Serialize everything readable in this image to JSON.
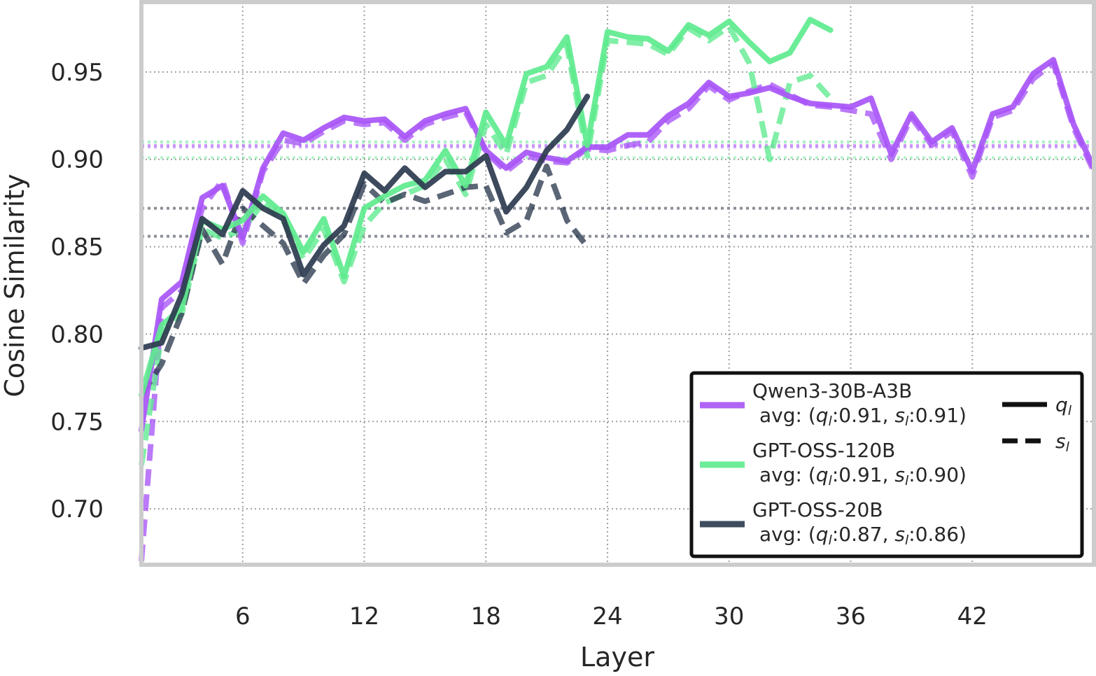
{
  "chart_data": {
    "type": "line",
    "xlabel": "Layer",
    "ylabel": "Cosine Similarity",
    "xlim": [
      1,
      48
    ],
    "ylim": [
      0.668,
      0.99
    ],
    "xticks": [
      6,
      12,
      18,
      24,
      30,
      36,
      42
    ],
    "xtick_labels": [
      "6",
      "12",
      "18",
      "24",
      "30",
      "36",
      "42"
    ],
    "yticks": [
      0.7,
      0.75,
      0.8,
      0.85,
      0.9,
      0.95
    ],
    "ytick_labels": [
      "0.70",
      "0.75",
      "0.80",
      "0.85",
      "0.90",
      "0.95"
    ],
    "grid": true,
    "legend_position": "lower-right",
    "series": [
      {
        "name": "Qwen3-30B-A3B",
        "avg_label": "avg: (q_l:0.91, s_l:0.91)",
        "avg_q": 0.908,
        "avg_s": 0.907,
        "color": "#a855f7",
        "x": [
          1,
          2,
          3,
          4,
          5,
          6,
          7,
          8,
          9,
          10,
          11,
          12,
          13,
          14,
          15,
          16,
          17,
          18,
          19,
          20,
          21,
          22,
          23,
          24,
          25,
          26,
          27,
          28,
          29,
          30,
          31,
          32,
          33,
          34,
          35,
          36,
          37,
          38,
          39,
          40,
          41,
          42,
          43,
          44,
          45,
          46,
          47,
          48
        ],
        "q": [
          0.745,
          0.82,
          0.83,
          0.878,
          0.885,
          0.855,
          0.895,
          0.915,
          0.911,
          0.918,
          0.924,
          0.922,
          0.923,
          0.913,
          0.922,
          0.926,
          0.929,
          0.905,
          0.895,
          0.904,
          0.901,
          0.899,
          0.907,
          0.907,
          0.914,
          0.914,
          0.925,
          0.932,
          0.944,
          0.936,
          0.938,
          0.941,
          0.936,
          0.932,
          0.931,
          0.93,
          0.935,
          0.903,
          0.926,
          0.91,
          0.918,
          0.893,
          0.926,
          0.93,
          0.949,
          0.957,
          0.92,
          0.895
        ],
        "s": [
          0.67,
          0.815,
          0.825,
          0.872,
          0.888,
          0.852,
          0.893,
          0.911,
          0.909,
          0.916,
          0.922,
          0.92,
          0.921,
          0.911,
          0.92,
          0.924,
          0.927,
          0.904,
          0.893,
          0.902,
          0.899,
          0.898,
          0.906,
          0.905,
          0.908,
          0.91,
          0.922,
          0.929,
          0.942,
          0.934,
          0.939,
          0.943,
          0.937,
          0.931,
          0.93,
          0.928,
          0.926,
          0.9,
          0.924,
          0.908,
          0.916,
          0.89,
          0.924,
          0.928,
          0.946,
          0.955,
          0.918,
          0.893
        ]
      },
      {
        "name": "GPT-OSS-120B",
        "avg_label": "avg: (q_l:0.91, s_l:0.90)",
        "avg_q": 0.91,
        "avg_s": 0.901,
        "color": "#5eea8e",
        "x": [
          1,
          2,
          3,
          4,
          5,
          6,
          7,
          8,
          9,
          10,
          11,
          12,
          13,
          14,
          15,
          16,
          17,
          18,
          19,
          20,
          21,
          22,
          23,
          24,
          25,
          26,
          27,
          28,
          29,
          30,
          31,
          32,
          33,
          34,
          35
        ],
        "q": [
          0.765,
          0.805,
          0.815,
          0.865,
          0.86,
          0.865,
          0.879,
          0.869,
          0.847,
          0.866,
          0.833,
          0.872,
          0.879,
          0.885,
          0.888,
          0.905,
          0.885,
          0.927,
          0.908,
          0.949,
          0.953,
          0.97,
          0.908,
          0.973,
          0.97,
          0.969,
          0.962,
          0.977,
          0.971,
          0.979,
          0.967,
          0.956,
          0.961,
          0.98,
          0.974
        ],
        "s": [
          0.725,
          0.8,
          0.812,
          0.86,
          0.855,
          0.86,
          0.875,
          0.865,
          0.843,
          0.86,
          0.83,
          0.862,
          0.875,
          0.88,
          0.885,
          0.9,
          0.88,
          0.92,
          0.903,
          0.944,
          0.948,
          0.965,
          0.902,
          0.968,
          0.967,
          0.966,
          0.96,
          0.975,
          0.968,
          0.976,
          0.955,
          0.9,
          0.944,
          0.948,
          0.935
        ]
      },
      {
        "name": "GPT-OSS-20B",
        "avg_label": "avg: (q_l:0.87, s_l:0.86)",
        "avg_q": 0.872,
        "avg_s": 0.856,
        "color": "#2c3a4e",
        "x": [
          1,
          2,
          3,
          4,
          5,
          6,
          7,
          8,
          9,
          10,
          11,
          12,
          13,
          14,
          15,
          16,
          17,
          18,
          19,
          20,
          21,
          22,
          23
        ],
        "q": [
          0.792,
          0.795,
          0.823,
          0.866,
          0.857,
          0.882,
          0.872,
          0.866,
          0.834,
          0.851,
          0.862,
          0.892,
          0.882,
          0.895,
          0.884,
          0.893,
          0.893,
          0.902,
          0.87,
          0.884,
          0.905,
          0.917,
          0.936
        ],
        "s": [
          0.765,
          0.783,
          0.812,
          0.86,
          0.84,
          0.872,
          0.862,
          0.852,
          0.829,
          0.845,
          0.857,
          0.886,
          0.875,
          0.88,
          0.876,
          0.88,
          0.884,
          0.885,
          0.858,
          0.865,
          0.896,
          0.865,
          0.85
        ]
      }
    ],
    "style_legend": [
      {
        "label": "q_l",
        "dash": "solid"
      },
      {
        "label": "s_l",
        "dash": "dashed"
      }
    ]
  }
}
